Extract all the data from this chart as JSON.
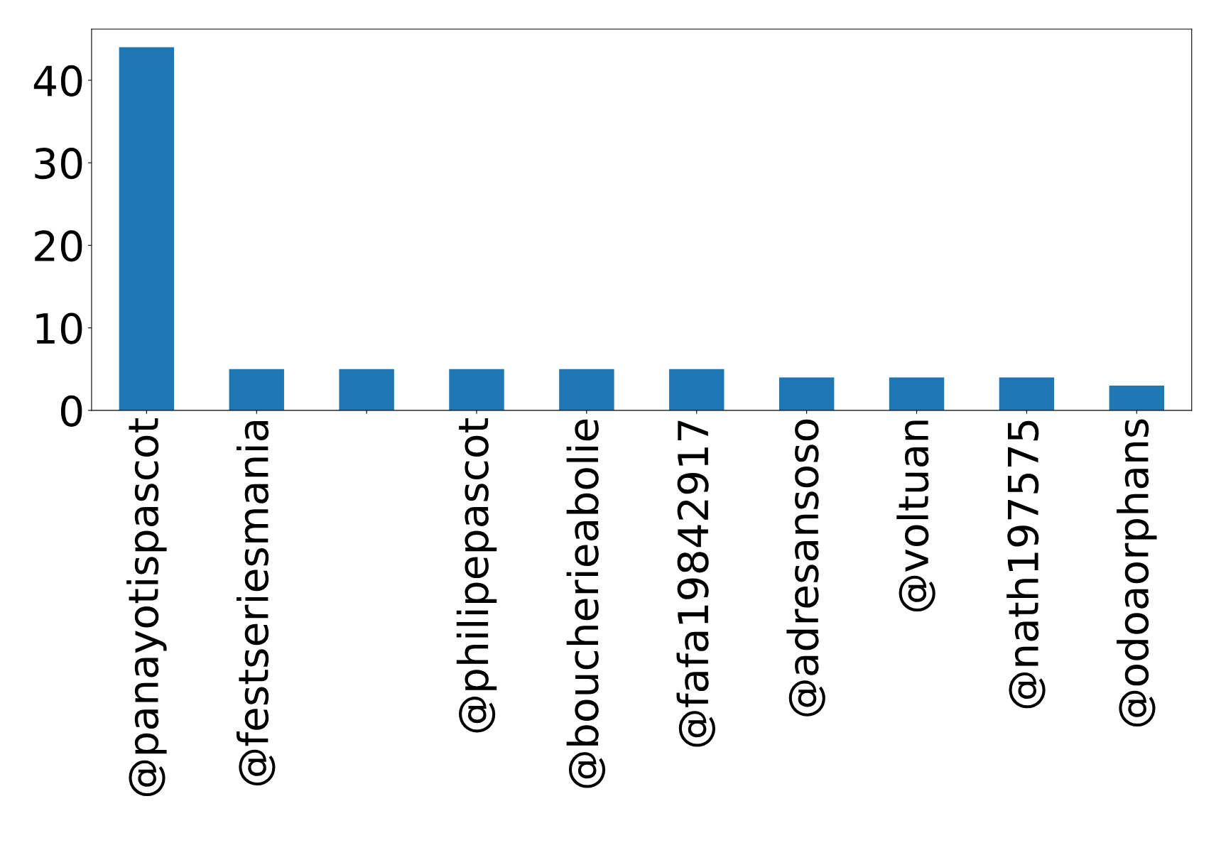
{
  "chart_data": {
    "type": "bar",
    "categories": [
      "@panayotispascot",
      "@festseriesmania",
      null,
      "@philipepascot",
      "@boucherieabolie",
      "@fafa19842917",
      "@adresansoso",
      "@voltuan",
      "@nath197575",
      "@odoaorphans"
    ],
    "values": [
      44,
      5,
      5,
      5,
      5,
      5,
      4,
      4,
      4,
      3
    ],
    "color": "#1f77b4",
    "ylim": [
      0,
      46.2
    ],
    "yticks": [
      0,
      10,
      20,
      30,
      40
    ],
    "grid": false
  }
}
